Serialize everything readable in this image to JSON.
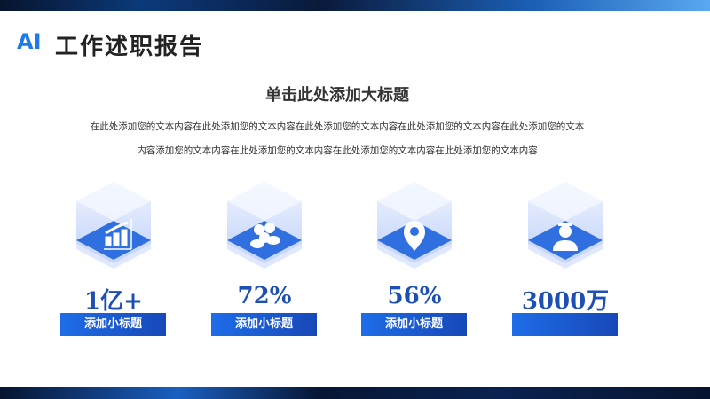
{
  "header": {
    "logo": "AI",
    "title": "工作述职报告"
  },
  "main": {
    "title": "单击此处添加大标题",
    "body_lines": [
      "在此处添加您的文本内容在此处添加您的文本内容在此处添加您的文本内容在此处添加您的文本内容在此处添加您的文本",
      "内容添加您的文本内容在此处添加您的文本内容在此处添加您的文本内容在此处添加您的文本内容"
    ],
    "stats": [
      {
        "icon": "bar-chart-icon",
        "value": "1亿+",
        "label": "添加小标题"
      },
      {
        "icon": "users-icon",
        "value": "72%",
        "label": "添加小标题"
      },
      {
        "icon": "location-pin-icon",
        "value": "56%",
        "label": "添加小标题"
      },
      {
        "icon": "user-badge-icon",
        "value": "3000万",
        "label": ""
      }
    ]
  },
  "colors": {
    "accent": "#1e6de8",
    "number": "#1e4fb3"
  }
}
